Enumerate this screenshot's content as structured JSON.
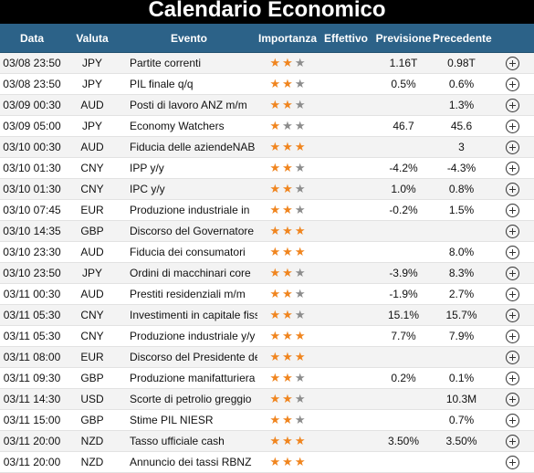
{
  "title": "Calendario Economico",
  "colors": {
    "header_bg": "#2c6288",
    "star_on": "#f0851f",
    "star_off": "#8c8c8c"
  },
  "columns": {
    "date": "Data",
    "currency": "Valuta",
    "event": "Evento",
    "importance": "Importanza",
    "actual": "Effettivo",
    "forecast": "Previsione",
    "previous": "Precedente"
  },
  "rows": [
    {
      "date": "03/08 23:50",
      "currency": "JPY",
      "event": "Partite correnti",
      "importance": 2,
      "actual": "",
      "forecast": "1.16T",
      "previous": "0.98T"
    },
    {
      "date": "03/08 23:50",
      "currency": "JPY",
      "event": "PIL finale q/q",
      "importance": 2,
      "actual": "",
      "forecast": "0.5%",
      "previous": "0.6%"
    },
    {
      "date": "03/09 00:30",
      "currency": "AUD",
      "event": "Posti di lavoro ANZ m/m",
      "importance": 2,
      "actual": "",
      "forecast": "",
      "previous": "1.3%"
    },
    {
      "date": "03/09 05:00",
      "currency": "JPY",
      "event": "Economy Watchers",
      "importance": 1,
      "actual": "",
      "forecast": "46.7",
      "previous": "45.6"
    },
    {
      "date": "03/10 00:30",
      "currency": "AUD",
      "event": "Fiducia delle aziendeNAB",
      "importance": 3,
      "actual": "",
      "forecast": "",
      "previous": "3"
    },
    {
      "date": "03/10 01:30",
      "currency": "CNY",
      "event": "IPP y/y",
      "importance": 2,
      "actual": "",
      "forecast": "-4.2%",
      "previous": "-4.3%"
    },
    {
      "date": "03/10 01:30",
      "currency": "CNY",
      "event": "IPC y/y",
      "importance": 2,
      "actual": "",
      "forecast": "1.0%",
      "previous": "0.8%"
    },
    {
      "date": "03/10 07:45",
      "currency": "EUR",
      "event": "Produzione industriale in",
      "importance": 2,
      "actual": "",
      "forecast": "-0.2%",
      "previous": "1.5%"
    },
    {
      "date": "03/10 14:35",
      "currency": "GBP",
      "event": "Discorso del Governatore",
      "importance": 3,
      "actual": "",
      "forecast": "",
      "previous": ""
    },
    {
      "date": "03/10 23:30",
      "currency": "AUD",
      "event": "Fiducia dei consumatori",
      "importance": 3,
      "actual": "",
      "forecast": "",
      "previous": "8.0%"
    },
    {
      "date": "03/10 23:50",
      "currency": "JPY",
      "event": "Ordini di macchinari core",
      "importance": 2,
      "actual": "",
      "forecast": "-3.9%",
      "previous": "8.3%"
    },
    {
      "date": "03/11 00:30",
      "currency": "AUD",
      "event": "Prestiti residenziali m/m",
      "importance": 2,
      "actual": "",
      "forecast": "-1.9%",
      "previous": "2.7%"
    },
    {
      "date": "03/11 05:30",
      "currency": "CNY",
      "event": "Investimenti in capitale fisso",
      "importance": 2,
      "actual": "",
      "forecast": "15.1%",
      "previous": "15.7%"
    },
    {
      "date": "03/11 05:30",
      "currency": "CNY",
      "event": "Produzione industriale y/y",
      "importance": 3,
      "actual": "",
      "forecast": "7.7%",
      "previous": "7.9%"
    },
    {
      "date": "03/11 08:00",
      "currency": "EUR",
      "event": "Discorso del Presidente della",
      "importance": 3,
      "actual": "",
      "forecast": "",
      "previous": ""
    },
    {
      "date": "03/11 09:30",
      "currency": "GBP",
      "event": "Produzione manifatturiera",
      "importance": 2,
      "actual": "",
      "forecast": "0.2%",
      "previous": "0.1%"
    },
    {
      "date": "03/11 14:30",
      "currency": "USD",
      "event": "Scorte di petrolio greggio",
      "importance": 2,
      "actual": "",
      "forecast": "",
      "previous": "10.3M"
    },
    {
      "date": "03/11 15:00",
      "currency": "GBP",
      "event": "Stime PIL NIESR",
      "importance": 2,
      "actual": "",
      "forecast": "",
      "previous": "0.7%"
    },
    {
      "date": "03/11 20:00",
      "currency": "NZD",
      "event": "Tasso ufficiale cash",
      "importance": 3,
      "actual": "",
      "forecast": "3.50%",
      "previous": "3.50%"
    },
    {
      "date": "03/11 20:00",
      "currency": "NZD",
      "event": "Annuncio dei tassi RBNZ",
      "importance": 3,
      "actual": "",
      "forecast": "",
      "previous": ""
    }
  ]
}
